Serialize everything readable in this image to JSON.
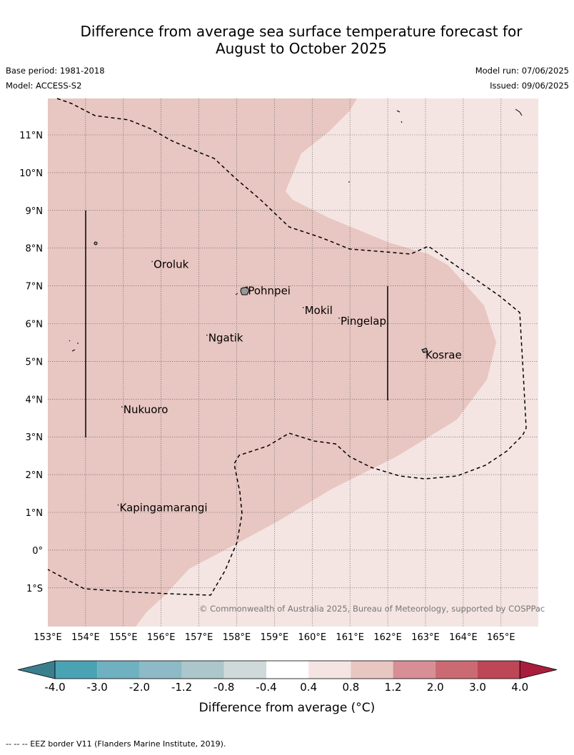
{
  "title_line1": "Difference from average sea surface temperature forecast for",
  "title_line2": "August to October 2025",
  "base_period": "Base period: 1981-2018",
  "model": "Model: ACCESS-S2",
  "model_run": "Model run: 07/06/2025",
  "issued": "Issued: 09/06/2025",
  "copyright": "© Commonwealth of Australia 2025, Bureau of Meteorology, supported by COSPPac",
  "lat_labels": [
    "11°N",
    "10°N",
    "9°N",
    "8°N",
    "7°N",
    "6°N",
    "5°N",
    "4°N",
    "3°N",
    "2°N",
    "1°N",
    "0°",
    "1°S"
  ],
  "lon_labels": [
    "153°E",
    "154°E",
    "155°E",
    "156°E",
    "157°E",
    "158°E",
    "159°E",
    "160°E",
    "161°E",
    "162°E",
    "163°E",
    "164°E",
    "165°E"
  ],
  "places": [
    {
      "name": "Oroluk",
      "lon": 155.8,
      "lat": 7.55
    },
    {
      "name": "Pohnpei",
      "lon": 158.3,
      "lat": 6.85
    },
    {
      "name": "Mokil",
      "lon": 159.8,
      "lat": 6.33
    },
    {
      "name": "Pingelap",
      "lon": 160.75,
      "lat": 6.05
    },
    {
      "name": "Ngatik",
      "lon": 157.25,
      "lat": 5.6
    },
    {
      "name": "Kosrae",
      "lon": 163.0,
      "lat": 5.15
    },
    {
      "name": "Nukuoro",
      "lon": 155.0,
      "lat": 3.7
    },
    {
      "name": "Kapingamarangi",
      "lon": 154.9,
      "lat": 1.1
    }
  ],
  "colorbar": {
    "label": "Difference from average (°C)",
    "ticks": [
      "-4.0",
      "-3.0",
      "-2.0",
      "-1.2",
      "-0.8",
      "-0.4",
      "0.4",
      "0.8",
      "1.2",
      "2.0",
      "3.0",
      "4.0"
    ],
    "colors": [
      "#3a7f8e",
      "#4aa3b4",
      "#6fb1c0",
      "#8dbac6",
      "#abc7cb",
      "#cfd9d9",
      "#ffffff",
      "#f4e5e3",
      "#e8c6c1",
      "#d88e95",
      "#cc6a73",
      "#bd4657",
      "#a81e3c"
    ]
  },
  "footnote": "-- -- -- EEZ border V11 (Flanders Marine Institute, 2019)."
}
